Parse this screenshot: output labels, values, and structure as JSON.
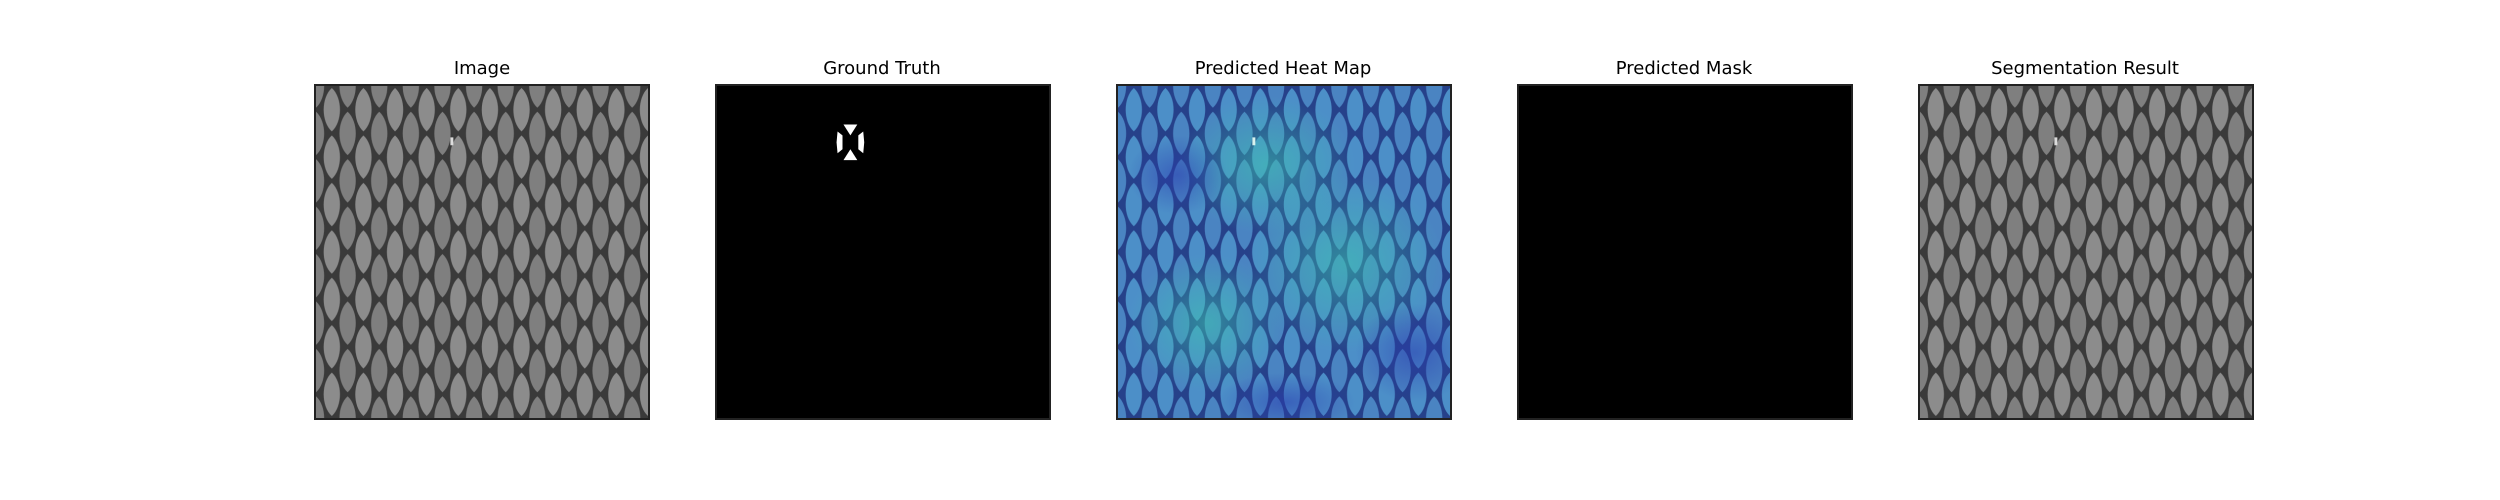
{
  "figure": {
    "panels": [
      {
        "title": "Image"
      },
      {
        "title": "Ground Truth"
      },
      {
        "title": "Predicted Heat Map"
      },
      {
        "title": "Predicted Mask"
      },
      {
        "title": "Segmentation Result"
      }
    ]
  },
  "colors": {
    "background": "#ffffff",
    "mesh_light": "#8c8c8c",
    "mesh_dark": "#3a3a3a",
    "mask_bg": "#000000",
    "mask_fg": "#ffffff",
    "heat_blue": "#3f63c5",
    "heat_teal": "#3aa8b5"
  }
}
